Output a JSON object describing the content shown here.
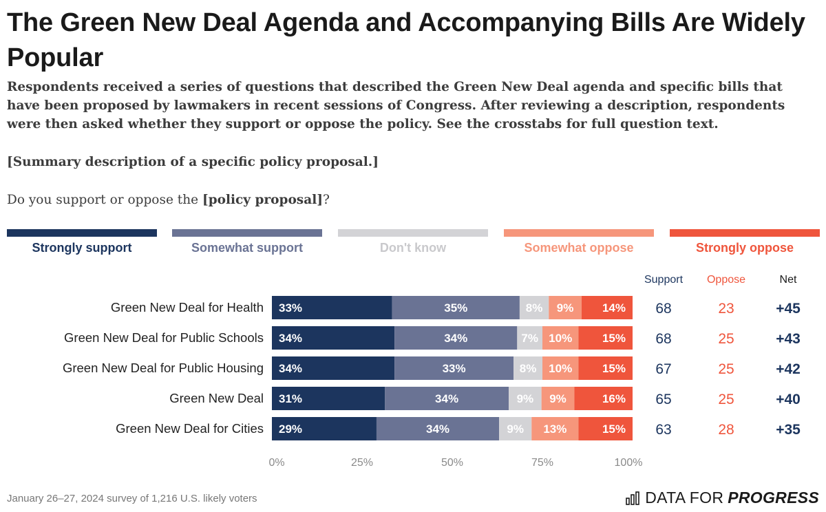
{
  "header": {
    "title": "The Green New Deal Agenda and Accompanying Bills Are Widely Popular",
    "description": "Respondents received a series of questions that described the Green New Deal agenda and specific bills that have been proposed by lawmakers in recent sessions of Congress. After reviewing a description, respondents were then asked whether they support or oppose the policy. See the crosstabs for full question text.",
    "summary": "[Summary description of a specific policy proposal.]",
    "question_prefix": "Do you support or oppose the ",
    "question_bold": "[policy proposal]",
    "question_suffix": "?"
  },
  "colors": {
    "strongly_support": "#1c355e",
    "somewhat_support": "#6a7394",
    "dont_know": "#d3d3d6",
    "somewhat_oppose": "#f6967b",
    "strongly_oppose": "#ef553c",
    "support_text": "#1c355e",
    "oppose_text": "#ef553c",
    "dont_know_text": "#c9c9cc"
  },
  "chart_data": {
    "type": "bar",
    "orientation": "horizontal-stacked",
    "categories": [
      "Green New Deal for Health",
      "Green New Deal for Public Schools",
      "Green New Deal for Public Housing",
      "Green New Deal",
      "Green New Deal for Cities"
    ],
    "series": [
      {
        "name": "Strongly support",
        "values": [
          33,
          34,
          34,
          31,
          29
        ]
      },
      {
        "name": "Somewhat support",
        "values": [
          35,
          34,
          33,
          34,
          34
        ]
      },
      {
        "name": "Don't know",
        "values": [
          8,
          7,
          8,
          9,
          9
        ]
      },
      {
        "name": "Somewhat oppose",
        "values": [
          9,
          10,
          10,
          9,
          13
        ]
      },
      {
        "name": "Strongly oppose",
        "values": [
          14,
          15,
          15,
          16,
          15
        ]
      }
    ],
    "summary_columns": {
      "headers": [
        "Support",
        "Oppose",
        "Net"
      ],
      "support": [
        "68",
        "68",
        "67",
        "65",
        "63"
      ],
      "oppose": [
        "23",
        "25",
        "25",
        "25",
        "28"
      ],
      "net": [
        "+45",
        "+43",
        "+42",
        "+40",
        "+35"
      ]
    },
    "xlim": [
      0,
      100
    ],
    "xticks": [
      "0%",
      "25%",
      "50%",
      "75%",
      "100%"
    ],
    "legend_position": "top"
  },
  "footer": {
    "source": "January 26–27, 2024 survey of 1,216 U.S. likely voters",
    "brand_prefix": "DATA FOR",
    "brand_bold": "PROGRESS"
  }
}
